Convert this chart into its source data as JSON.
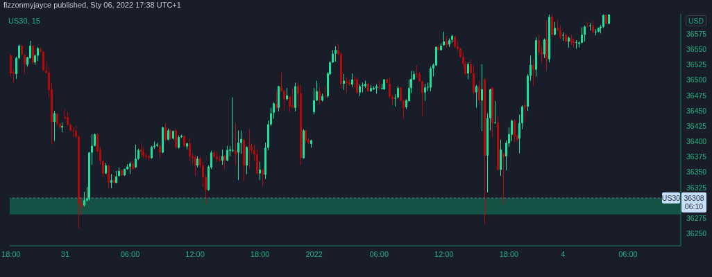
{
  "chart_data": {
    "type": "candlestick",
    "title": "US30, 15",
    "ylabel": "USD",
    "annotations": [
      "fizzonmyjayce published, Sty 06, 2022 17:38 UTC+1",
      "36308",
      "06:10"
    ],
    "categories": [
      "18:00",
      null,
      null,
      null,
      null,
      null,
      null,
      null,
      null,
      null,
      null,
      null,
      null,
      null,
      null,
      null,
      null,
      null,
      null,
      null,
      "31",
      null,
      null,
      null,
      null,
      null,
      null,
      null,
      null,
      null,
      null,
      null,
      null,
      null,
      null,
      null,
      null,
      null,
      null,
      null,
      null,
      null,
      null,
      null,
      "06:00",
      null,
      null,
      null,
      null,
      null,
      null,
      null,
      null,
      null,
      null,
      null,
      null,
      null,
      null,
      null,
      null,
      null,
      null,
      null,
      null,
      null,
      null,
      null,
      "12:00",
      null,
      null,
      null,
      null,
      null,
      null,
      null,
      null,
      null,
      null,
      null,
      null,
      null,
      null,
      null,
      null,
      null,
      null,
      null,
      null,
      null,
      null,
      null,
      "18:00",
      null,
      null,
      null,
      null,
      null,
      null,
      null,
      null,
      null,
      null,
      null,
      null,
      null,
      null,
      null,
      null,
      null,
      null,
      null,
      "2022",
      null,
      null,
      null,
      null,
      null,
      null,
      null,
      null,
      null,
      null,
      null,
      null,
      null,
      null,
      null,
      null,
      null,
      null,
      null,
      null,
      null,
      null,
      null,
      "06:00",
      null,
      null,
      null,
      null,
      null,
      null,
      null,
      null,
      null,
      null,
      null,
      null,
      null,
      null,
      null,
      null,
      null,
      null,
      null,
      null,
      null,
      null,
      null,
      "12:00",
      null,
      null,
      null,
      null,
      null,
      null,
      null,
      null,
      null,
      null,
      null,
      null,
      null,
      null,
      null,
      null,
      null,
      null,
      null,
      null,
      null,
      null,
      null,
      "18:00",
      null,
      null,
      null,
      null,
      null,
      null,
      null,
      null,
      null,
      null,
      null,
      null,
      null,
      null,
      null,
      null,
      null,
      null,
      null,
      "4",
      null,
      null,
      null,
      null,
      null,
      null,
      null,
      null,
      null,
      null,
      null,
      null,
      null,
      null,
      null,
      null,
      null,
      null,
      null,
      null,
      null,
      null,
      null,
      "06:00",
      null,
      null,
      null,
      null,
      null,
      null,
      null,
      null,
      null,
      null,
      null,
      null,
      null,
      null,
      null,
      null,
      null,
      null,
      null
    ],
    "ohlc": [
      [
        36540,
        36542,
        36506,
        36511
      ],
      [
        36513,
        36517,
        36496,
        36511
      ],
      [
        36510,
        36538,
        36502,
        36536
      ],
      [
        36536,
        36558,
        36534,
        36556
      ],
      [
        36556,
        36558,
        36540,
        36542
      ],
      [
        36541,
        36542,
        36510,
        36526
      ],
      [
        36525,
        36538,
        36522,
        36537
      ],
      [
        36536,
        36564,
        36535,
        36556
      ],
      [
        36556,
        36557,
        36526,
        36529
      ],
      [
        36529,
        36542,
        36525,
        36540
      ],
      [
        36540,
        36554,
        36531,
        36552
      ],
      [
        36551,
        36553,
        36545,
        36546
      ],
      [
        36546,
        36547,
        36515,
        36516
      ],
      [
        36516,
        36530,
        36511,
        36512
      ],
      [
        36512,
        36521,
        36473,
        36484
      ],
      [
        36485,
        36495,
        36395,
        36432
      ],
      [
        36432,
        36450,
        36401,
        36446
      ],
      [
        36445,
        36446,
        36427,
        36429
      ],
      [
        36429,
        36430,
        36421,
        36423
      ],
      [
        36423,
        36431,
        36415,
        36425
      ],
      [
        36440,
        36452,
        36437,
        36438
      ],
      [
        36440,
        36448,
        36425,
        36428
      ],
      [
        36428,
        36429,
        36417,
        36418
      ],
      [
        36418,
        36423,
        36407,
        36417
      ],
      [
        36417,
        36425,
        36406,
        36408
      ],
      [
        36408,
        36409,
        36259,
        36299
      ],
      [
        36300,
        36309,
        36281,
        36294
      ],
      [
        36296,
        36318,
        36294,
        36304
      ],
      [
        36304,
        36326,
        36302,
        36307
      ],
      [
        36306,
        36383,
        36304,
        36382
      ],
      [
        36382,
        36412,
        36362,
        36393
      ],
      [
        36393,
        36413,
        36392,
        36412
      ],
      [
        36412,
        36413,
        36383,
        36384
      ],
      [
        36386,
        36391,
        36362,
        36368
      ],
      [
        36368,
        36369,
        36342,
        36348
      ],
      [
        36348,
        36365,
        36347,
        36361
      ],
      [
        36361,
        36362,
        36324,
        36333
      ],
      [
        36333,
        36347,
        36324,
        36337
      ],
      [
        36337,
        36346,
        36332,
        36333
      ],
      [
        36333,
        36352,
        36332,
        36343
      ],
      [
        36344,
        36358,
        36343,
        36352
      ],
      [
        36353,
        36354,
        36344,
        36345
      ],
      [
        36345,
        36356,
        36344,
        36355
      ],
      [
        36355,
        36363,
        36354,
        36359
      ],
      [
        36359,
        36367,
        36347,
        36364
      ],
      [
        36364,
        36369,
        36354,
        36355
      ],
      [
        36358,
        36395,
        36357,
        36372
      ],
      [
        36372,
        36388,
        36370,
        36386
      ],
      [
        36387,
        36397,
        36376,
        36383
      ],
      [
        36383,
        36391,
        36373,
        36377
      ],
      [
        36377,
        36380,
        36371,
        36375
      ],
      [
        36376,
        36378,
        36369,
        36373
      ],
      [
        36373,
        36393,
        36372,
        36391
      ],
      [
        36391,
        36400,
        36388,
        36393
      ],
      [
        36393,
        36398,
        36391,
        36395
      ],
      [
        36393,
        36397,
        36373,
        36382
      ],
      [
        36382,
        36424,
        36381,
        36423
      ],
      [
        36423,
        36430,
        36401,
        36403
      ],
      [
        36403,
        36421,
        36402,
        36418
      ],
      [
        36418,
        36420,
        36403,
        36405
      ],
      [
        36405,
        36418,
        36403,
        36417
      ],
      [
        36418,
        36421,
        36388,
        36391
      ],
      [
        36390,
        36410,
        36388,
        36407
      ],
      [
        36407,
        36411,
        36406,
        36409
      ],
      [
        36409,
        36410,
        36391,
        36393
      ],
      [
        36392,
        36398,
        36387,
        36397
      ],
      [
        36397,
        36405,
        36369,
        36376
      ],
      [
        36376,
        36380,
        36363,
        36373
      ],
      [
        36375,
        36377,
        36344,
        36361
      ],
      [
        36361,
        36376,
        36358,
        36372
      ],
      [
        36372,
        36376,
        36357,
        36361
      ],
      [
        36361,
        36367,
        36326,
        36342
      ],
      [
        36342,
        36346,
        36299,
        36321
      ],
      [
        36321,
        36361,
        36320,
        36359
      ],
      [
        36358,
        36385,
        36355,
        36382
      ],
      [
        36382,
        36386,
        36373,
        36375
      ],
      [
        36375,
        36383,
        36367,
        36371
      ],
      [
        36371,
        36377,
        36367,
        36369
      ],
      [
        36369,
        36387,
        36362,
        36376
      ],
      [
        36376,
        36378,
        36355,
        36369
      ],
      [
        36369,
        36393,
        36368,
        36386
      ],
      [
        36385,
        36393,
        36376,
        36387
      ],
      [
        36385,
        36472,
        36383,
        36386
      ],
      [
        36386,
        36430,
        36361,
        36379
      ],
      [
        36382,
        36418,
        36337,
        36398
      ],
      [
        36398,
        36418,
        36380,
        36404
      ],
      [
        36403,
        36404,
        36336,
        36361
      ],
      [
        36361,
        36392,
        36347,
        36391
      ],
      [
        36393,
        36420,
        36356,
        36391
      ],
      [
        36391,
        36397,
        36381,
        36386
      ],
      [
        36386,
        36395,
        36369,
        36379
      ],
      [
        36379,
        36388,
        36346,
        36348
      ],
      [
        36348,
        36367,
        36337,
        36354
      ],
      [
        36354,
        36355,
        36327,
        36346
      ],
      [
        36346,
        36398,
        36339,
        36390
      ],
      [
        36390,
        36434,
        36386,
        36428
      ],
      [
        36428,
        36455,
        36425,
        36446
      ],
      [
        36447,
        36464,
        36437,
        36462
      ],
      [
        36461,
        36482,
        36453,
        36455
      ],
      [
        36455,
        36491,
        36449,
        36490
      ],
      [
        36490,
        36512,
        36481,
        36482
      ],
      [
        36482,
        36484,
        36451,
        36469
      ],
      [
        36469,
        36487,
        36467,
        36475
      ],
      [
        36473,
        36474,
        36447,
        36457
      ],
      [
        36459,
        36487,
        36454,
        36455
      ],
      [
        36455,
        36496,
        36449,
        36490
      ],
      [
        36490,
        36496,
        36455,
        36478
      ],
      [
        36478,
        36492,
        36362,
        36373
      ],
      [
        36373,
        36420,
        36372,
        36418
      ],
      [
        36418,
        36419,
        36397,
        36402
      ],
      [
        36403,
        36405,
        36396,
        36398
      ],
      [
        36396,
        36403,
        36390,
        36402
      ],
      [
        36448,
        36487,
        36444,
        36467
      ],
      [
        36467,
        36499,
        36466,
        36482
      ],
      [
        36482,
        36488,
        36460,
        36467
      ],
      [
        36467,
        36478,
        36465,
        36474
      ],
      [
        36474,
        36490,
        36472,
        36473
      ],
      [
        36474,
        36513,
        36471,
        36511
      ],
      [
        36510,
        36531,
        36508,
        36529
      ],
      [
        36529,
        36549,
        36528,
        36543
      ],
      [
        36543,
        36555,
        36530,
        36549
      ],
      [
        36549,
        36559,
        36541,
        36542
      ],
      [
        36542,
        36546,
        36487,
        36494
      ],
      [
        36494,
        36510,
        36484,
        36499
      ],
      [
        36498,
        36504,
        36479,
        36495
      ],
      [
        36496,
        36501,
        36491,
        36493
      ],
      [
        36493,
        36511,
        36489,
        36501
      ],
      [
        36501,
        36506,
        36487,
        36500
      ],
      [
        36501,
        36505,
        36478,
        36479
      ],
      [
        36480,
        36493,
        36474,
        36490
      ],
      [
        36491,
        36496,
        36480,
        36492
      ],
      [
        36490,
        36499,
        36487,
        36494
      ],
      [
        36494,
        36495,
        36481,
        36482
      ],
      [
        36482,
        36492,
        36481,
        36487
      ],
      [
        36485,
        36490,
        36484,
        36487
      ],
      [
        36487,
        36493,
        36478,
        36490
      ],
      [
        36489,
        36498,
        36484,
        36487
      ],
      [
        36486,
        36494,
        36485,
        36487
      ],
      [
        36485,
        36502,
        36484,
        36501
      ],
      [
        36501,
        36502,
        36494,
        36495
      ],
      [
        36494,
        36504,
        36470,
        36473
      ],
      [
        36473,
        36476,
        36459,
        36469
      ],
      [
        36470,
        36477,
        36457,
        36471
      ],
      [
        36472,
        36490,
        36470,
        36487
      ],
      [
        36488,
        36489,
        36465,
        36467
      ],
      [
        36467,
        36469,
        36437,
        36455
      ],
      [
        36456,
        36469,
        36453,
        36467
      ],
      [
        36466,
        36501,
        36465,
        36487
      ],
      [
        36487,
        36515,
        36479,
        36502
      ],
      [
        36501,
        36515,
        36500,
        36510
      ],
      [
        36511,
        36524,
        36504,
        36509
      ],
      [
        36510,
        36513,
        36497,
        36498
      ],
      [
        36498,
        36499,
        36441,
        36479
      ],
      [
        36480,
        36494,
        36466,
        36488
      ],
      [
        36488,
        36496,
        36482,
        36489
      ],
      [
        36488,
        36522,
        36482,
        36519
      ],
      [
        36519,
        36527,
        36506,
        36525
      ],
      [
        36524,
        36555,
        36523,
        36554
      ],
      [
        36554,
        36557,
        36548,
        36549
      ],
      [
        36549,
        36560,
        36548,
        36556
      ],
      [
        36557,
        36579,
        36556,
        36563
      ],
      [
        36564,
        36572,
        36553,
        36557
      ],
      [
        36558,
        36568,
        36554,
        36565
      ],
      [
        36566,
        36574,
        36561,
        36572
      ],
      [
        36571,
        36572,
        36552,
        36555
      ],
      [
        36555,
        36564,
        36548,
        36551
      ],
      [
        36551,
        36553,
        36536,
        36538
      ],
      [
        36538,
        36546,
        36521,
        36527
      ],
      [
        36527,
        36531,
        36508,
        36510
      ],
      [
        36511,
        36529,
        36501,
        36526
      ],
      [
        36526,
        36533,
        36510,
        36511
      ],
      [
        36511,
        36524,
        36476,
        36480
      ],
      [
        36480,
        36492,
        36455,
        36490
      ],
      [
        36490,
        36499,
        36461,
        36467
      ],
      [
        36467,
        36526,
        36417,
        36485
      ],
      [
        36501,
        36504,
        36265,
        36377
      ],
      [
        36377,
        36446,
        36317,
        36438
      ],
      [
        36438,
        36486,
        36418,
        36485
      ],
      [
        36487,
        36489,
        36407,
        36430
      ],
      [
        36430,
        36466,
        36429,
        36431
      ],
      [
        36431,
        36440,
        36353,
        36354
      ],
      [
        36354,
        36403,
        36344,
        36387
      ],
      [
        36381,
        36382,
        36298,
        36375
      ],
      [
        36376,
        36402,
        36353,
        36398
      ],
      [
        36397,
        36423,
        36391,
        36412
      ],
      [
        36411,
        36436,
        36401,
        36434
      ],
      [
        36434,
        36436,
        36399,
        36408
      ],
      [
        36409,
        36412,
        36399,
        36403
      ],
      [
        36405,
        36444,
        36381,
        36430
      ],
      [
        36430,
        36459,
        36420,
        36457
      ],
      [
        36459,
        36467,
        36433,
        36456
      ],
      [
        36457,
        36510,
        36450,
        36507
      ],
      [
        36507,
        36540,
        36499,
        36525
      ],
      [
        36524,
        36534,
        36491,
        36517
      ],
      [
        36517,
        36570,
        36506,
        36565
      ],
      [
        36565,
        36574,
        36540,
        36546
      ],
      [
        36546,
        36555,
        36527,
        36542
      ],
      [
        36542,
        36568,
        36536,
        36566
      ],
      [
        36566,
        36598,
        36516,
        36534
      ],
      [
        36534,
        36607,
        36529,
        36603
      ],
      [
        36603,
        36607,
        36569,
        36574
      ],
      [
        36574,
        36595,
        36573,
        36585
      ],
      [
        36585,
        36599,
        36580,
        36581
      ],
      [
        36581,
        36589,
        36567,
        36569
      ],
      [
        36573,
        36578,
        36564,
        36574
      ],
      [
        36574,
        36576,
        36561,
        36563
      ],
      [
        36563,
        36571,
        36553,
        36569
      ],
      [
        36568,
        36574,
        36557,
        36561
      ],
      [
        36563,
        36568,
        36553,
        36561
      ],
      [
        36561,
        36565,
        36551,
        36562
      ],
      [
        36559,
        36563,
        36553,
        36561
      ],
      [
        36561,
        36586,
        36560,
        36574
      ],
      [
        36574,
        36589,
        36563,
        36587
      ],
      [
        36588,
        36595,
        36586,
        36587
      ],
      [
        36588,
        36593,
        36581,
        36589
      ],
      [
        36589,
        36596,
        36576,
        36578
      ],
      [
        36578,
        36583,
        36573,
        36579
      ],
      [
        36579,
        36586,
        36578,
        36585
      ],
      [
        36585,
        36590,
        36576,
        36587
      ],
      [
        36587,
        36607,
        36585,
        36606
      ],
      [
        36606,
        36607,
        36591,
        36592
      ],
      [
        36592,
        36607,
        36591,
        36607
      ],
      null,
      null,
      null,
      null,
      null,
      null,
      null,
      null,
      null,
      null,
      null,
      null,
      null,
      null,
      null,
      null,
      null,
      null,
      null,
      null,
      null,
      null,
      null,
      null,
      null,
      null
    ],
    "colors": [
      "#b50a0a",
      "#b50a0a",
      "#16e39c",
      "#16e39c",
      "#b50a0a",
      "#b50a0a",
      "#16e39c",
      "#16e39c",
      "#b50a0a",
      "#16e39c",
      "#16e39c",
      "#b50a0a",
      "#b50a0a",
      "#b50a0a",
      "#b50a0a",
      "#b50a0a",
      "#16e39c",
      "#b50a0a",
      "#b50a0a",
      "#16e39c",
      "#b50a0a",
      "#b50a0a",
      "#b50a0a",
      "#b50a0a",
      "#b50a0a",
      "#b50a0a",
      "#b50a0a",
      "#16e39c",
      "#16e39c",
      "#16e39c",
      "#16e39c",
      "#16e39c",
      "#b50a0a",
      "#b50a0a",
      "#b50a0a",
      "#16e39c",
      "#b50a0a",
      "#16e39c",
      "#b50a0a",
      "#16e39c",
      "#16e39c",
      "#b50a0a",
      "#16e39c",
      "#16e39c",
      "#16e39c",
      "#b50a0a",
      "#16e39c",
      "#16e39c",
      "#b50a0a",
      "#b50a0a",
      "#b50a0a",
      "#b50a0a",
      "#16e39c",
      "#16e39c",
      "#16e39c",
      "#b50a0a",
      "#16e39c",
      "#b50a0a",
      "#16e39c",
      "#b50a0a",
      "#16e39c",
      "#b50a0a",
      "#16e39c",
      "#16e39c",
      "#b50a0a",
      "#16e39c",
      "#b50a0a",
      "#b50a0a",
      "#b50a0a",
      "#16e39c",
      "#b50a0a",
      "#b50a0a",
      "#b50a0a",
      "#16e39c",
      "#16e39c",
      "#b50a0a",
      "#b50a0a",
      "#b50a0a",
      "#16e39c",
      "#b50a0a",
      "#16e39c",
      "#16e39c",
      "#16e39c",
      "#b50a0a",
      "#16e39c",
      "#16e39c",
      "#b50a0a",
      "#16e39c",
      "#b50a0a",
      "#b50a0a",
      "#b50a0a",
      "#b50a0a",
      "#16e39c",
      "#b50a0a",
      "#16e39c",
      "#16e39c",
      "#16e39c",
      "#16e39c",
      "#b50a0a",
      "#16e39c",
      "#b50a0a",
      "#b50a0a",
      "#16e39c",
      "#b50a0a",
      "#b50a0a",
      "#16e39c",
      "#b50a0a",
      "#b50a0a",
      "#16e39c",
      "#b50a0a",
      "#b50a0a",
      "#16e39c",
      "#16e39c",
      "#16e39c",
      "#b50a0a",
      "#16e39c",
      "#b50a0a",
      "#16e39c",
      "#16e39c",
      "#16e39c",
      "#16e39c",
      "#b50a0a",
      "#b50a0a",
      "#16e39c",
      "#b50a0a",
      "#b50a0a",
      "#16e39c",
      "#b50a0a",
      "#b50a0a",
      "#16e39c",
      "#16e39c",
      "#16e39c",
      "#b50a0a",
      "#16e39c",
      "#16e39c",
      "#16e39c",
      "#b50a0a",
      "#16e39c",
      "#16e39c",
      "#b50a0a",
      "#b50a0a",
      "#b50a0a",
      "#16e39c",
      "#16e39c",
      "#b50a0a",
      "#b50a0a",
      "#16e39c",
      "#16e39c",
      "#16e39c",
      "#16e39c",
      "#b50a0a",
      "#b50a0a",
      "#b50a0a",
      "#16e39c",
      "#16e39c",
      "#16e39c",
      "#16e39c",
      "#16e39c",
      "#b50a0a",
      "#16e39c",
      "#16e39c",
      "#b50a0a",
      "#16e39c",
      "#16e39c",
      "#b50a0a",
      "#b50a0a",
      "#b50a0a",
      "#b50a0a",
      "#b50a0a",
      "#16e39c",
      "#b50a0a",
      "#b50a0a",
      "#16e39c",
      "#b50a0a",
      "#16e39c",
      "#b50a0a",
      "#16e39c",
      "#16e39c",
      "#b50a0a",
      "#16e39c",
      "#b50a0a",
      "#16e39c",
      "#b50a0a",
      "#16e39c",
      "#16e39c",
      "#16e39c",
      "#b50a0a",
      "#b50a0a",
      "#16e39c",
      "#16e39c",
      "#b50a0a",
      "#16e39c",
      "#16e39c",
      "#b50a0a",
      "#16e39c",
      "#b50a0a",
      "#b50a0a",
      "#16e39c",
      "#b50a0a",
      "#16e39c",
      "#b50a0a",
      "#16e39c",
      "#b50a0a",
      "#b50a0a",
      "#16e39c",
      "#b50a0a",
      "#16e39c",
      "#b50a0a",
      "#b50a0a",
      "#16e39c",
      "#16e39c",
      "#16e39c",
      "#16e39c",
      "#b50a0a",
      "#16e39c",
      "#b50a0a",
      "#16e39c",
      "#16e39c",
      "#16e39c",
      "#16e39c",
      "#b50a0a",
      "#16e39c",
      null,
      null,
      null,
      null,
      null,
      null,
      null,
      null,
      null,
      null,
      null,
      null,
      null,
      null,
      null,
      null,
      null,
      null,
      null,
      null,
      null,
      null,
      null,
      null,
      null,
      null
    ],
    "ylim": [
      36230,
      36608
    ],
    "yticks": [
      36250,
      36275,
      36325,
      36350,
      36375,
      36400,
      36425,
      36450,
      36475,
      36500,
      36525,
      36550,
      36575
    ],
    "ref_lines": [
      {
        "axis": "y",
        "value": 36308,
        "label": "US30",
        "color": "#6b6f7b",
        "line_style": "dashed"
      }
    ],
    "bands": [
      {
        "axis": "y",
        "from": 36281,
        "to": 36308,
        "color": "#155246"
      }
    ]
  }
}
